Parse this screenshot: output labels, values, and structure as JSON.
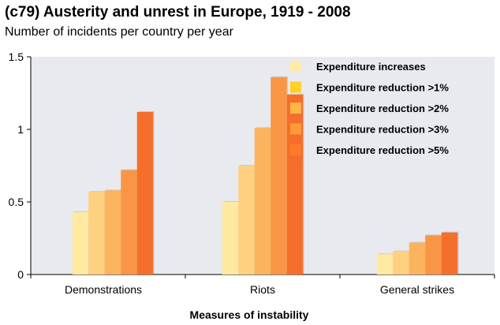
{
  "title": "(c79) Austerity and unrest in Europe, 1919 - 2008",
  "subtitle": "Number of incidents per country per year",
  "chart_data": {
    "type": "bar",
    "categories": [
      "Demonstrations",
      "Riots",
      "General strikes"
    ],
    "series": [
      {
        "name": "Expenditure increases",
        "color": "#ffe9a0",
        "values": [
          0.43,
          0.5,
          0.14
        ]
      },
      {
        "name": "Expenditure reduction >1%",
        "color": "#ffd080",
        "values": [
          0.57,
          0.75,
          0.16
        ]
      },
      {
        "name": "Expenditure reduction >2%",
        "color": "#fcb35e",
        "values": [
          0.58,
          1.01,
          0.22
        ]
      },
      {
        "name": "Expenditure reduction >3%",
        "color": "#f99645",
        "values": [
          0.72,
          1.36,
          0.27
        ]
      },
      {
        "name": "Expenditure reduction >5%",
        "color": "#f46f2b",
        "values": [
          1.12,
          1.24,
          0.29
        ]
      }
    ],
    "legend_swatch_colors": [
      "#ffeaa8",
      "#ffd02a",
      "#ffb547",
      "#ff9a38",
      "#ff7a2a"
    ],
    "title": "(c79) Austerity and unrest in Europe, 1919 - 2008",
    "subtitle": "Number of incidents per country per year",
    "xlabel": "Measures of instability",
    "ylabel": "",
    "ylim": [
      0,
      1.5
    ],
    "yticks": [
      0,
      0.5,
      1,
      1.5
    ],
    "ytick_labels": [
      "0",
      "0.5",
      "1",
      "1.5"
    ],
    "grid": false,
    "legend_position": "top-right",
    "plot_background": "#e8eaf0"
  }
}
